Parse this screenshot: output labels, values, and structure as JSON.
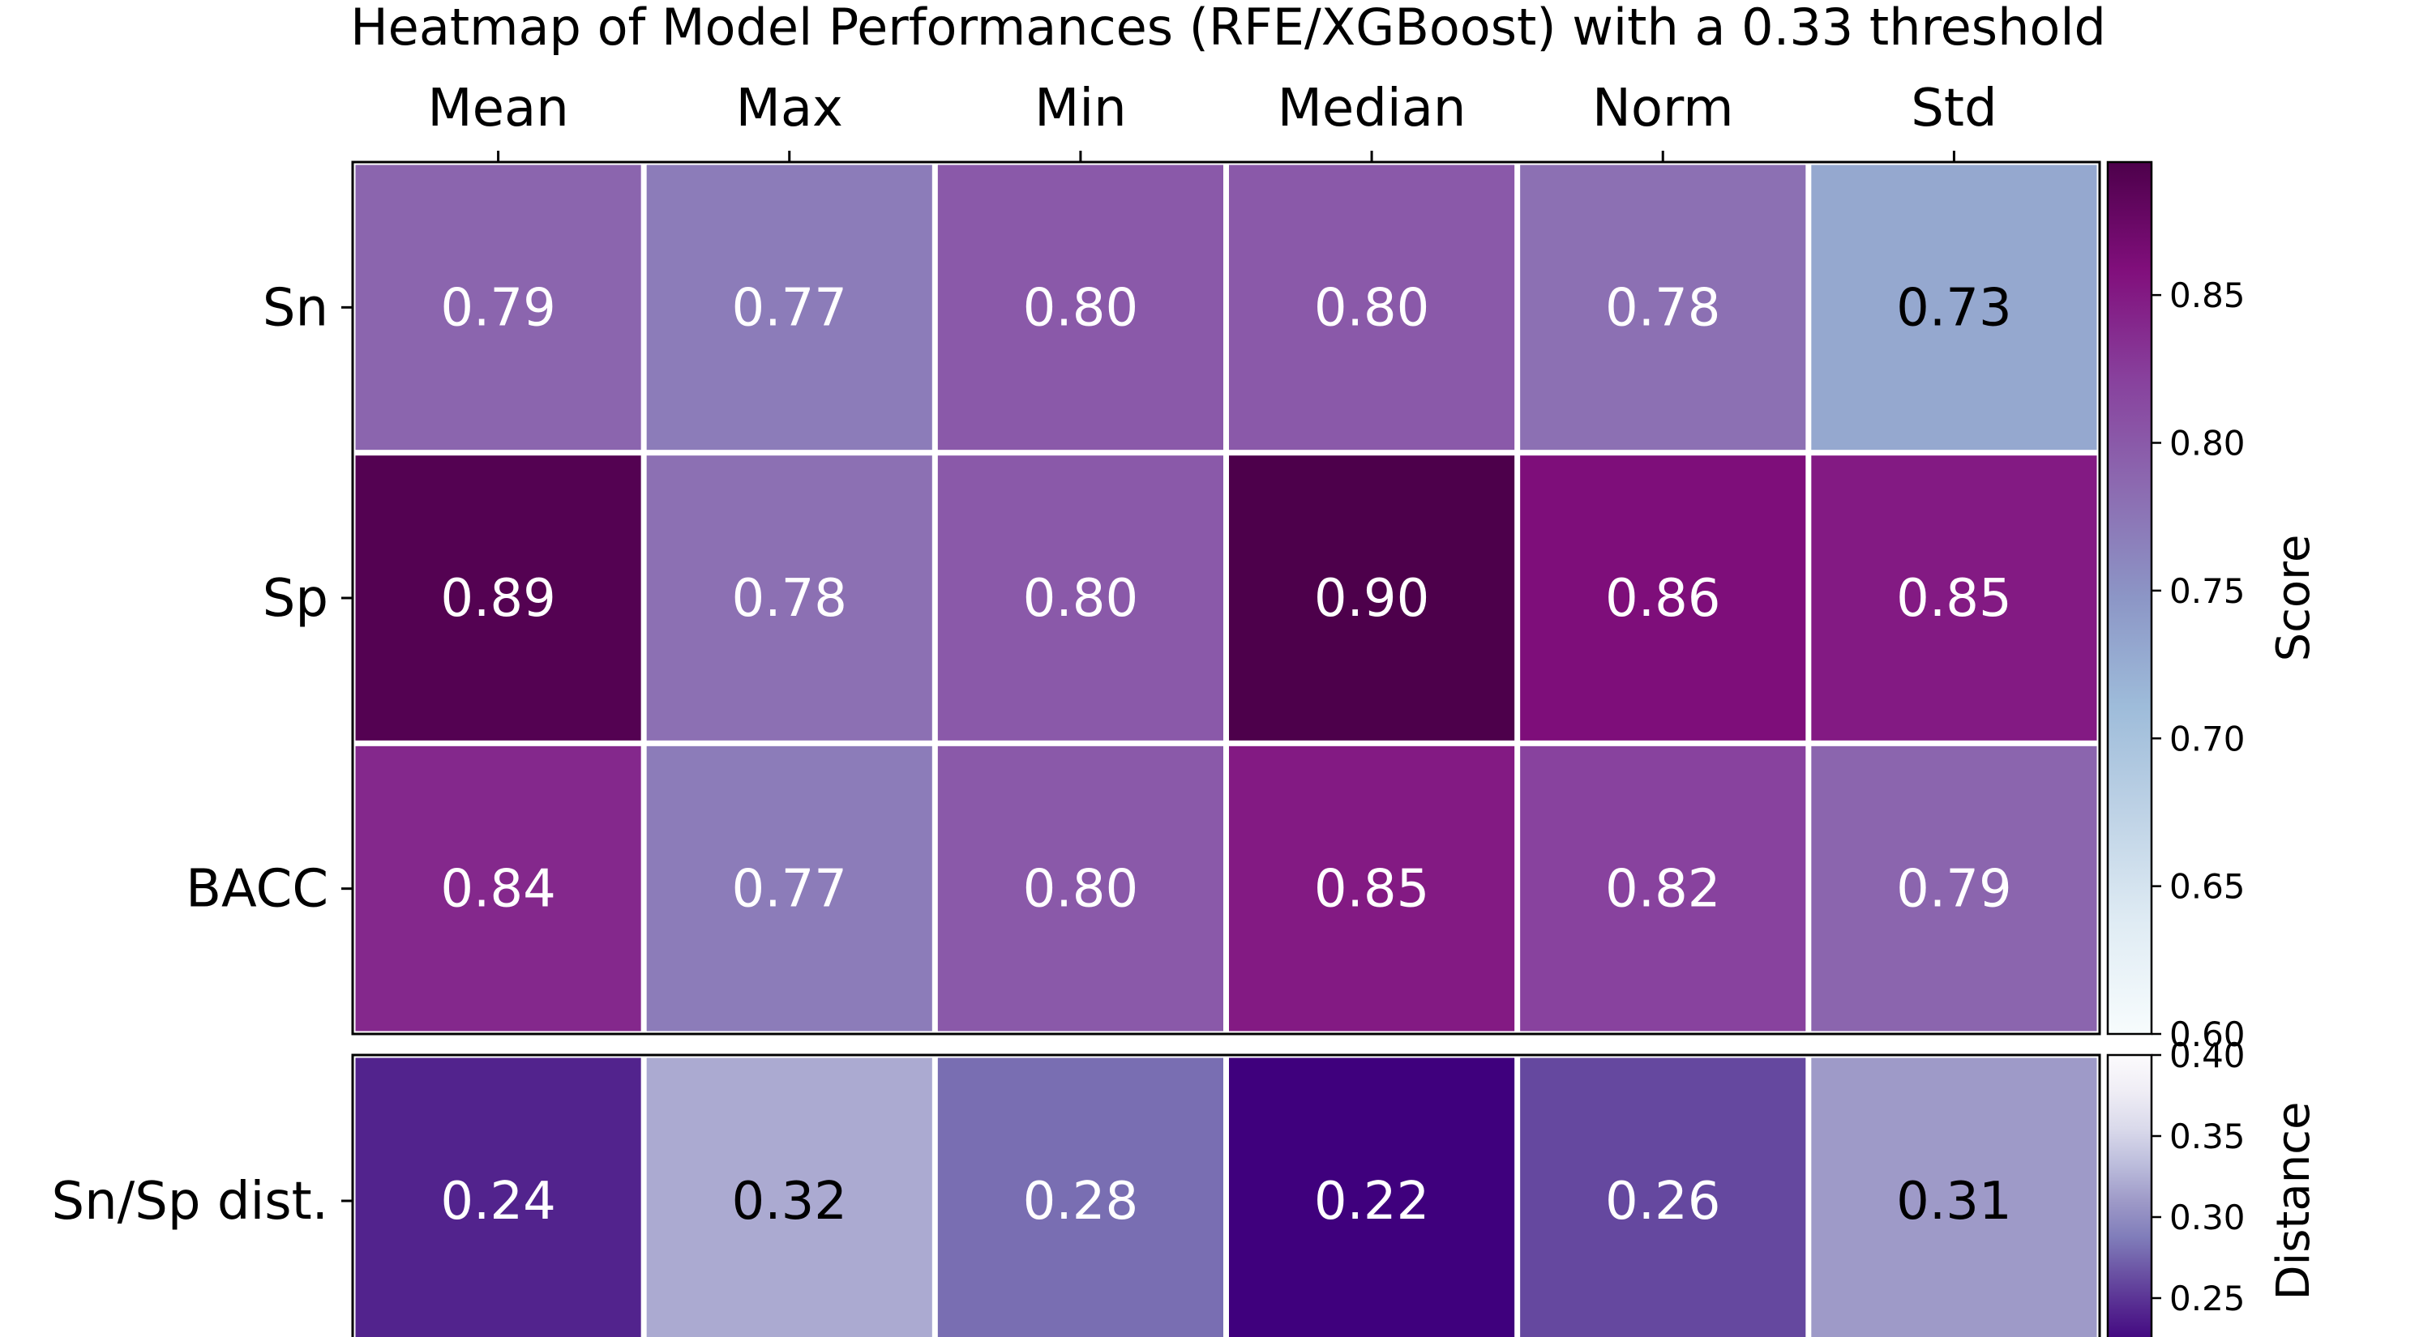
{
  "chart_data": {
    "type": "heatmap",
    "title": "Heatmap of Model Performances (RFE/XGBoost) with a 0.33 threshold",
    "columns": [
      "Mean",
      "Max",
      "Min",
      "Median",
      "Norm",
      "Std"
    ],
    "score_panel": {
      "rows": [
        "Sn",
        "Sp",
        "BACC"
      ],
      "values": [
        [
          0.79,
          0.77,
          0.8,
          0.8,
          0.78,
          0.73
        ],
        [
          0.89,
          0.78,
          0.8,
          0.9,
          0.86,
          0.85
        ],
        [
          0.84,
          0.77,
          0.8,
          0.85,
          0.82,
          0.79
        ]
      ],
      "labels": [
        [
          "0.79",
          "0.77",
          "0.80",
          "0.80",
          "0.78",
          "0.73"
        ],
        [
          "0.89",
          "0.78",
          "0.80",
          "0.90",
          "0.86",
          "0.85"
        ],
        [
          "0.84",
          "0.77",
          "0.80",
          "0.85",
          "0.82",
          "0.79"
        ]
      ],
      "colorbar": {
        "label": "Score",
        "range": [
          0.6,
          0.895
        ],
        "ticks": [
          0.6,
          0.65,
          0.7,
          0.75,
          0.8,
          0.85
        ],
        "tick_labels": [
          "0.60",
          "0.65",
          "0.70",
          "0.75",
          "0.80",
          "0.85"
        ],
        "colormap": "BuPu"
      }
    },
    "distance_panel": {
      "rows": [
        "Sn/Sp dist."
      ],
      "values": [
        [
          0.24,
          0.32,
          0.28,
          0.22,
          0.26,
          0.31
        ]
      ],
      "labels": [
        [
          "0.24",
          "0.32",
          "0.28",
          "0.22",
          "0.26",
          "0.31"
        ]
      ],
      "colorbar": {
        "label": "Distance",
        "range": [
          0.22,
          0.4
        ],
        "ticks": [
          0.25,
          0.3,
          0.35,
          0.4
        ],
        "tick_labels": [
          "0.25",
          "0.30",
          "0.35",
          "0.40"
        ],
        "colormap": "Purples_r"
      }
    },
    "grid": false,
    "legend": "colorbars right"
  }
}
